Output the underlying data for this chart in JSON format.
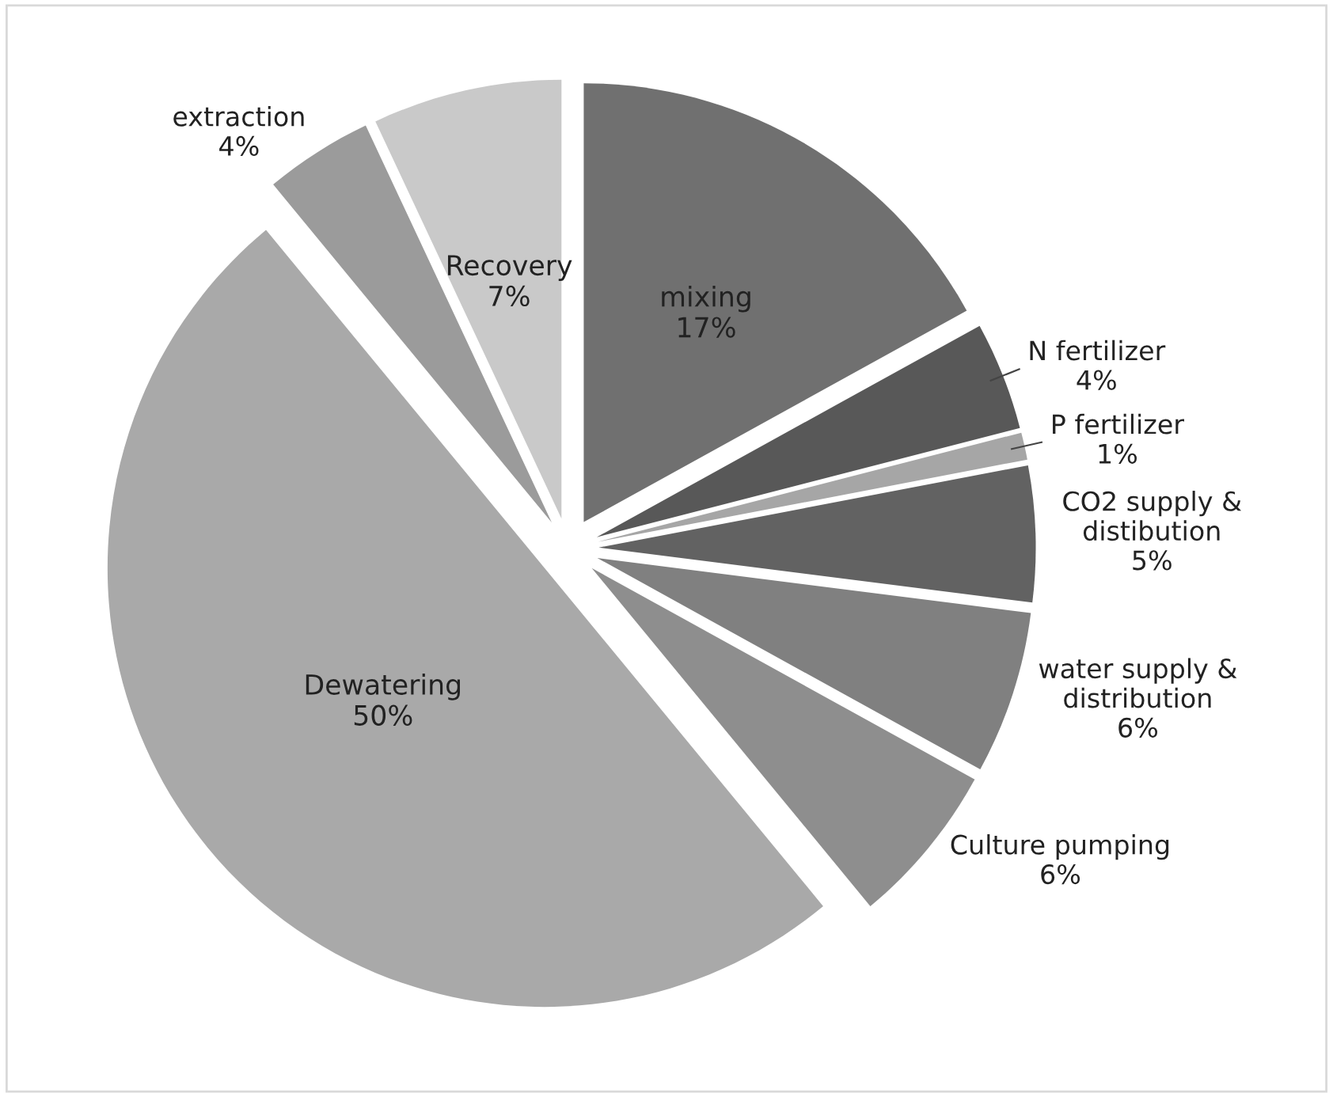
{
  "chart_data": {
    "type": "pie",
    "categories": [
      "mixing",
      "N fertilizer",
      "P fertilizer",
      "CO2 supply & distibution",
      "water supply & distribution",
      "Culture pumping",
      "Dewatering",
      "extraction",
      "Recovery"
    ],
    "values": [
      17,
      4,
      1,
      5,
      6,
      6,
      50,
      4,
      7
    ],
    "value_labels": [
      "17%",
      "4%",
      "1%",
      "5%",
      "6%",
      "6%",
      "50%",
      "4%",
      "7%"
    ],
    "colors": [
      "#707070",
      "#585858",
      "#a6a6a6",
      "#626262",
      "#808080",
      "#8e8e8e",
      "#a9a9a9",
      "#9b9b9b",
      "#c9c9c9"
    ]
  }
}
